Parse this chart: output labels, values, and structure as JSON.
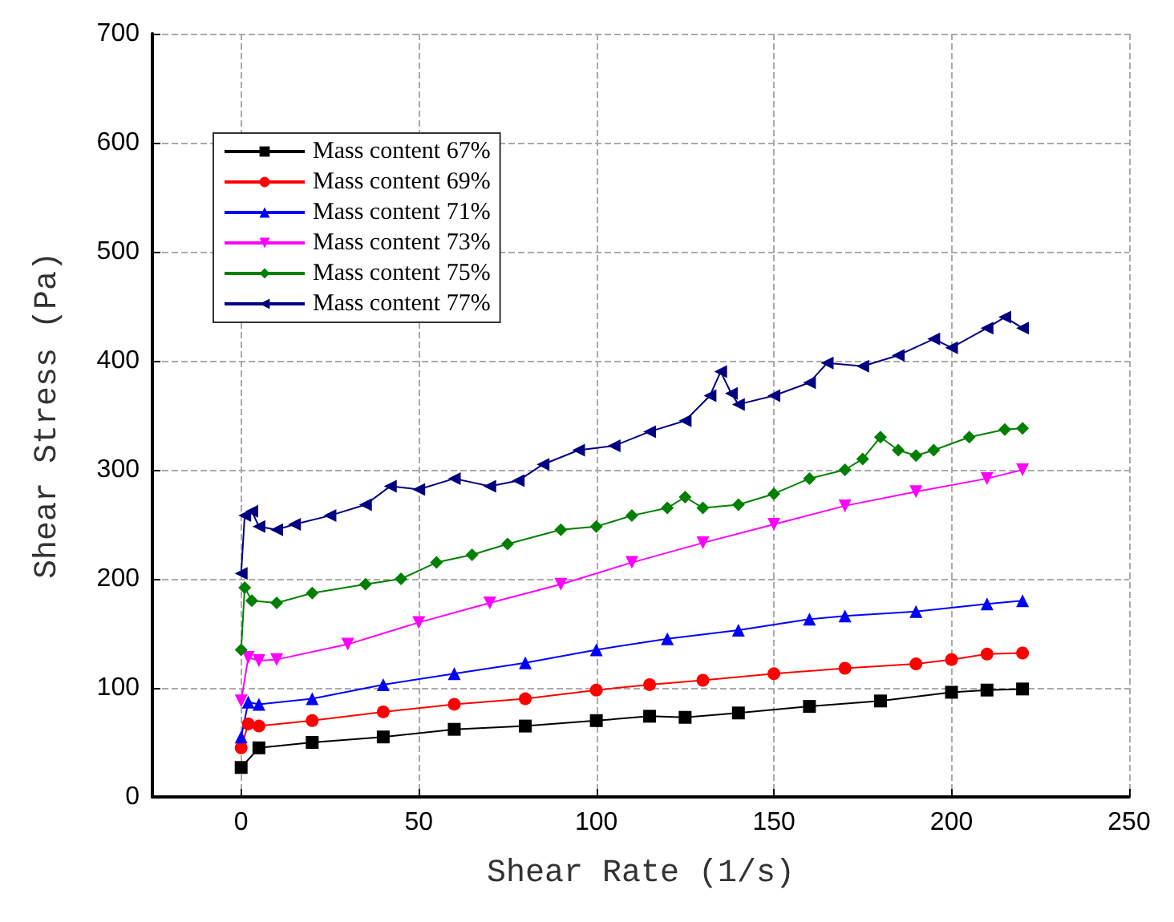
{
  "chart_data": {
    "type": "line",
    "xlabel": "Shear Rate (1/s)",
    "ylabel": "Shear Stress (Pa)",
    "xlim": [
      -25,
      250
    ],
    "xticks": [
      0,
      50,
      100,
      150,
      200,
      250
    ],
    "ylim": [
      0,
      700
    ],
    "yticks": [
      0,
      100,
      200,
      300,
      400,
      500,
      600,
      700
    ],
    "grid": true,
    "legend": "top left",
    "series": [
      {
        "name": "Mass content 67%",
        "color": "#000000",
        "marker": "square",
        "x": [
          0,
          5,
          20,
          40,
          60,
          80,
          100,
          115,
          125,
          140,
          160,
          180,
          200,
          210,
          220
        ],
        "values": [
          27,
          45,
          50,
          55,
          62,
          65,
          70,
          74,
          73,
          77,
          83,
          88,
          96,
          98,
          99
        ]
      },
      {
        "name": "Mass content 69%",
        "color": "#ff0000",
        "marker": "circle",
        "x": [
          0,
          2,
          5,
          20,
          40,
          60,
          80,
          100,
          115,
          130,
          150,
          170,
          190,
          200,
          210,
          220
        ],
        "values": [
          45,
          67,
          65,
          70,
          78,
          85,
          90,
          98,
          103,
          107,
          113,
          118,
          122,
          126,
          131,
          132
        ]
      },
      {
        "name": "Mass content 71%",
        "color": "#0000ff",
        "marker": "triangle",
        "x": [
          0,
          2,
          5,
          20,
          40,
          60,
          80,
          100,
          120,
          140,
          160,
          170,
          190,
          210,
          220
        ],
        "values": [
          55,
          87,
          85,
          90,
          103,
          113,
          123,
          135,
          145,
          153,
          163,
          166,
          170,
          177,
          180
        ]
      },
      {
        "name": "Mass content 73%",
        "color": "#ff00ff",
        "marker": "triangle-down",
        "x": [
          0,
          2,
          5,
          10,
          30,
          50,
          70,
          90,
          110,
          130,
          150,
          170,
          190,
          210,
          220
        ],
        "values": [
          88,
          128,
          125,
          126,
          140,
          160,
          178,
          195,
          215,
          233,
          250,
          267,
          280,
          292,
          300
        ]
      },
      {
        "name": "Mass content 75%",
        "color": "#008000",
        "marker": "diamond",
        "x": [
          0,
          1,
          3,
          10,
          20,
          35,
          45,
          55,
          65,
          75,
          90,
          100,
          110,
          120,
          125,
          130,
          140,
          150,
          160,
          170,
          175,
          180,
          185,
          190,
          195,
          205,
          215,
          220
        ],
        "values": [
          135,
          192,
          180,
          178,
          187,
          195,
          200,
          215,
          222,
          232,
          245,
          248,
          258,
          265,
          275,
          265,
          268,
          278,
          292,
          300,
          310,
          330,
          318,
          313,
          318,
          330,
          337,
          338
        ]
      },
      {
        "name": "Mass content 77%",
        "color": "#000080",
        "marker": "triangle-left",
        "x": [
          0,
          1,
          3,
          5,
          10,
          15,
          25,
          35,
          42,
          50,
          60,
          70,
          78,
          85,
          95,
          105,
          115,
          125,
          132,
          135,
          138,
          140,
          150,
          160,
          165,
          175,
          185,
          195,
          200,
          210,
          215,
          220
        ],
        "values": [
          205,
          258,
          262,
          248,
          245,
          250,
          258,
          268,
          285,
          282,
          292,
          285,
          290,
          305,
          318,
          322,
          335,
          345,
          368,
          390,
          370,
          360,
          368,
          380,
          398,
          395,
          405,
          420,
          412,
          430,
          440,
          430
        ]
      }
    ]
  }
}
